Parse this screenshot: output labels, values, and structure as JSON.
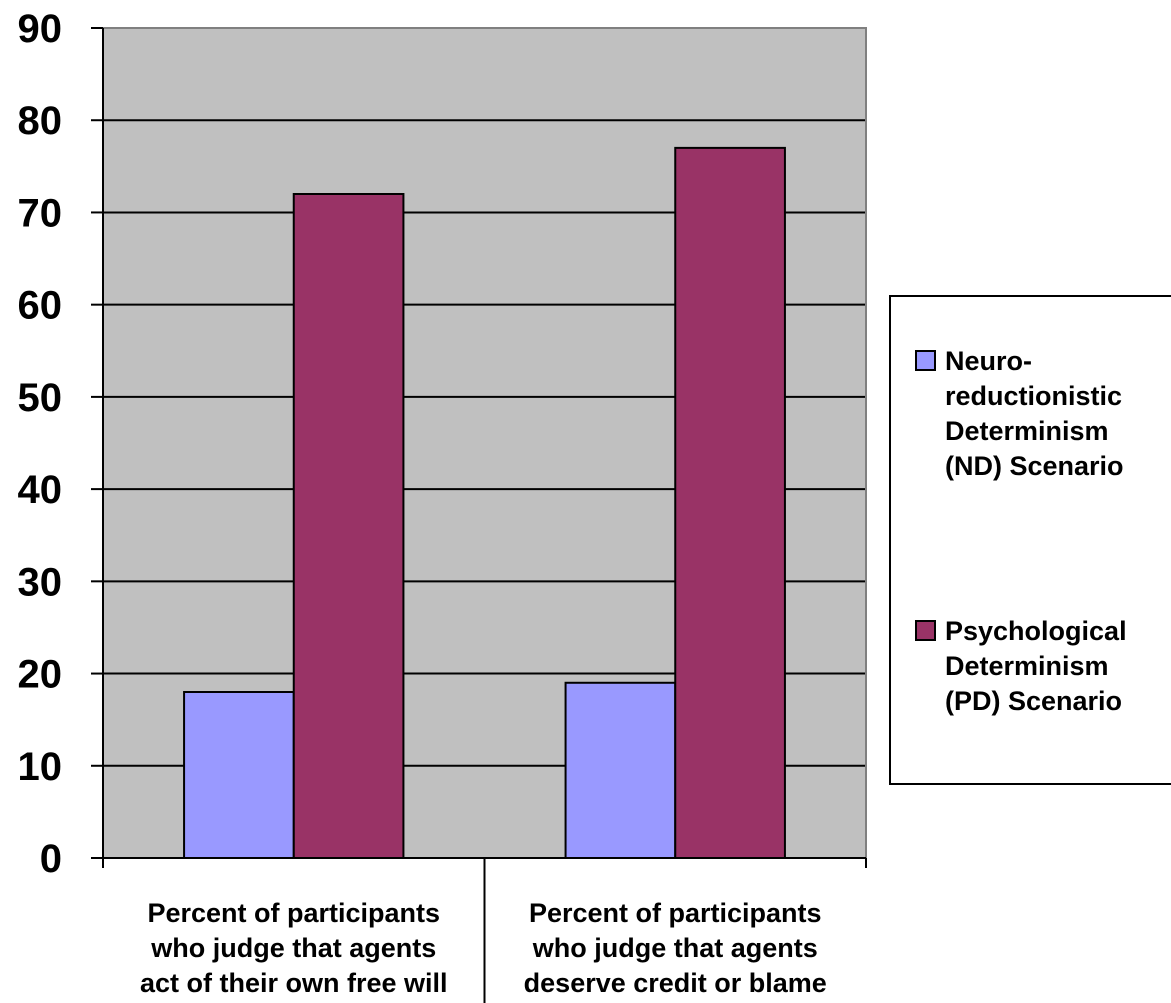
{
  "chart_data": {
    "type": "bar",
    "categories": [
      [
        "Percent of participants",
        "who judge that agents",
        "act of their own free will"
      ],
      [
        "Percent of participants",
        "who judge that agents",
        "deserve credit or blame"
      ]
    ],
    "series": [
      {
        "name": "Neuro-reductionistic Determinism (ND) Scenario",
        "legend_lines": [
          "Neuro-",
          "reductionistic",
          "Determinism",
          "(ND) Scenario"
        ],
        "color": "#9999ff",
        "values": [
          18,
          19
        ]
      },
      {
        "name": "Psychological Determinism (PD) Scenario",
        "legend_lines": [
          "Psychological",
          "Determinism",
          "(PD) Scenario"
        ],
        "color": "#993366",
        "values": [
          72,
          77
        ]
      }
    ],
    "ylim": [
      0,
      90
    ],
    "yticks": [
      "0",
      "10",
      "20",
      "30",
      "40",
      "50",
      "60",
      "70",
      "80",
      "90"
    ],
    "grid": true,
    "plot_background": "#c0c0c0",
    "legend_position": "right"
  }
}
